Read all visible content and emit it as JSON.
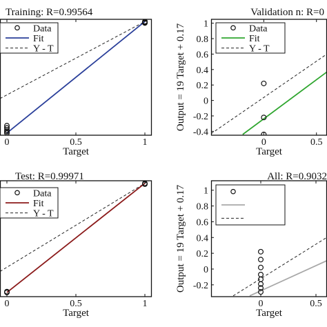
{
  "chart_data": [
    {
      "type": "scatter",
      "title": "Training: R=0.99564",
      "xlabel": "Target",
      "ylabel": "",
      "xlim": [
        -0.05,
        1.05
      ],
      "ylim": [
        -0.55,
        1.03
      ],
      "xticks": [
        0,
        0.5,
        1
      ],
      "xtick_labels": [
        "0",
        "0.5",
        "1"
      ],
      "yticks": [],
      "ytick_labels": [],
      "fit_color": "#2a3f9a",
      "legend": [
        "Data",
        "Fit",
        "Y - T"
      ],
      "data_points": [
        {
          "x": 0,
          "y": -0.42
        },
        {
          "x": 0,
          "y": -0.45
        },
        {
          "x": 0,
          "y": -0.48
        },
        {
          "x": 0,
          "y": -0.5
        },
        {
          "x": 0,
          "y": -0.52
        },
        {
          "x": 1,
          "y": 0.98
        },
        {
          "x": 1,
          "y": 0.99
        },
        {
          "x": 1,
          "y": 1.0
        }
      ],
      "fit_line": {
        "x": [
          0,
          1
        ],
        "y": [
          -0.52,
          1.0
        ]
      },
      "identity_line": {
        "x": [
          -0.05,
          1.05
        ],
        "y": [
          -0.05,
          1.05
        ]
      }
    },
    {
      "type": "scatter",
      "title": "Validation n: R=0",
      "xlabel": "Target",
      "ylabel": "Output = 19 Target + 0.17",
      "xlim": [
        -0.5,
        0.6
      ],
      "ylim": [
        -0.45,
        1.05
      ],
      "xticks": [
        0,
        0.5
      ],
      "xtick_labels": [
        "0",
        "0.5"
      ],
      "yticks": [
        -0.4,
        -0.2,
        0,
        0.2,
        0.4,
        0.6,
        0.8,
        1
      ],
      "ytick_labels": [
        "-0.4",
        "-0.2",
        "0",
        "0.2",
        "0.4",
        "0.6",
        "0.8",
        "1"
      ],
      "fit_color": "#2fa62f",
      "legend": [
        "Data",
        "Fit",
        "Y - T"
      ],
      "data_points": [
        {
          "x": 0,
          "y": 0.22
        },
        {
          "x": 0,
          "y": -0.22
        },
        {
          "x": 0,
          "y": -0.44
        }
      ],
      "fit_line": {
        "x": [
          -0.2,
          0.62
        ],
        "y": [
          -0.44,
          0.39
        ]
      },
      "identity_line": {
        "x": [
          -0.5,
          0.62
        ],
        "y": [
          -0.43,
          0.62
        ]
      }
    },
    {
      "type": "scatter",
      "title": "Test: R=0.99971",
      "xlabel": "Target",
      "ylabel": "",
      "xlim": [
        -0.05,
        1.05
      ],
      "ylim": [
        -0.35,
        1.03
      ],
      "xticks": [
        0,
        0.5,
        1
      ],
      "xtick_labels": [
        "0",
        "0.5",
        "1"
      ],
      "yticks": [],
      "ytick_labels": [],
      "fit_color": "#8b1a1a",
      "legend": [
        "Data",
        "Fit",
        "Y - T"
      ],
      "data_points": [
        {
          "x": 0,
          "y": -0.29
        },
        {
          "x": 0,
          "y": -0.3
        },
        {
          "x": 1,
          "y": 0.99
        },
        {
          "x": 1,
          "y": 1.0
        }
      ],
      "fit_line": {
        "x": [
          0,
          1
        ],
        "y": [
          -0.3,
          1.0
        ]
      },
      "identity_line": {
        "x": [
          -0.05,
          1.05
        ],
        "y": [
          -0.05,
          1.05
        ]
      }
    },
    {
      "type": "scatter",
      "title": "All: R=0.9032",
      "xlabel": "Target",
      "ylabel": "Output = 19 Target + 0.17",
      "xlim": [
        -0.45,
        0.6
      ],
      "ylim": [
        -0.35,
        1.12
      ],
      "xticks": [
        0,
        0.5
      ],
      "xtick_labels": [
        "0",
        "0.5"
      ],
      "yticks": [
        -0.2,
        0,
        0.2,
        0.4,
        0.6,
        0.8,
        1
      ],
      "ytick_labels": [
        "-0.2",
        "0",
        "0.2",
        "0.4",
        "0.6",
        "0.8",
        "1"
      ],
      "fit_color": "#a8a8a8",
      "legend": [
        "",
        "",
        ""
      ],
      "data_points": [
        {
          "x": 0,
          "y": 0.22
        },
        {
          "x": 0,
          "y": 0.12
        },
        {
          "x": 0,
          "y": 0.02
        },
        {
          "x": 0,
          "y": -0.07
        },
        {
          "x": 0,
          "y": -0.13
        },
        {
          "x": 0,
          "y": -0.19
        },
        {
          "x": 0,
          "y": -0.24
        },
        {
          "x": 0,
          "y": -0.29
        }
      ],
      "fit_line": {
        "x": [
          -0.1,
          0.62
        ],
        "y": [
          -0.34,
          0.12
        ]
      },
      "identity_line": {
        "x": [
          -0.25,
          0.62
        ],
        "y": [
          -0.34,
          0.42
        ]
      }
    }
  ]
}
